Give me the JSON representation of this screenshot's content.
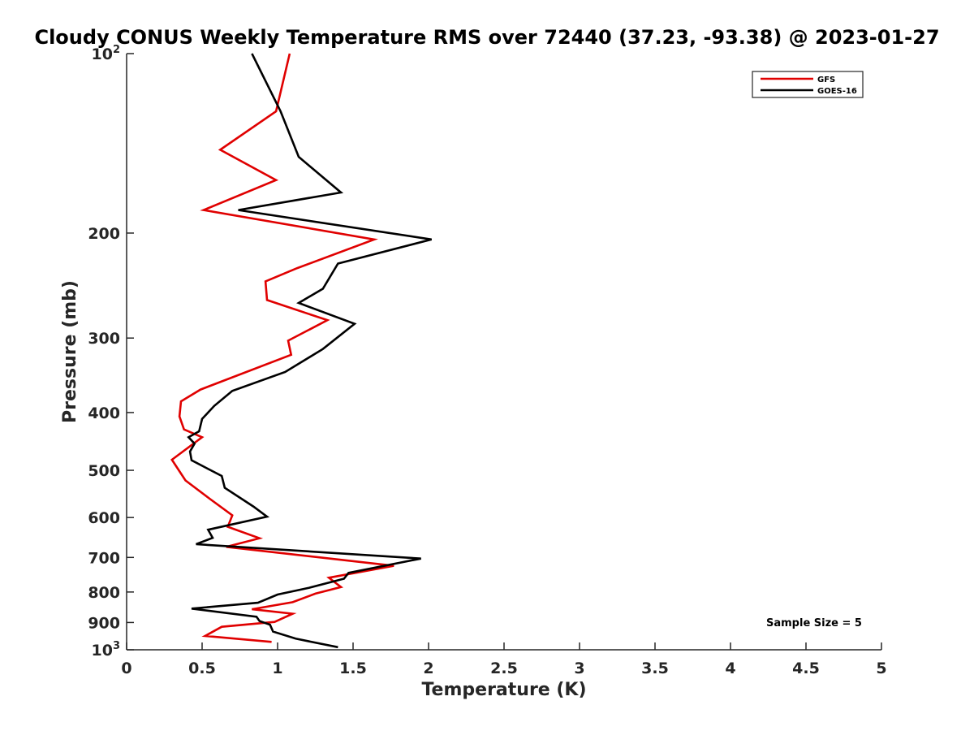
{
  "chart_data": {
    "type": "line",
    "title": "Cloudy CONUS Weekly Temperature RMS over 72440 (37.23, -93.38) @ 2023-01-27",
    "xlabel": "Temperature (K)",
    "ylabel": "Pressure (mb)",
    "xlim": [
      0,
      5
    ],
    "ylim": [
      100,
      1000
    ],
    "yscale": "log",
    "y_reversed": true,
    "grid": false,
    "legend_position": "top-right",
    "xticks": [
      "0",
      "0.5",
      "1",
      "1.5",
      "2",
      "2.5",
      "3",
      "3.5",
      "4",
      "4.5",
      "5"
    ],
    "yticks": [
      {
        "value": 100,
        "base": "10",
        "exp": "2"
      },
      {
        "value": 200,
        "label": "200"
      },
      {
        "value": 300,
        "label": "300"
      },
      {
        "value": 400,
        "label": "400"
      },
      {
        "value": 500,
        "label": "500"
      },
      {
        "value": 600,
        "label": "600"
      },
      {
        "value": 700,
        "label": "700"
      },
      {
        "value": 800,
        "label": "800"
      },
      {
        "value": 900,
        "label": "900"
      },
      {
        "value": 1000,
        "base": "10",
        "exp": "3"
      }
    ],
    "annotation": "Sample Size = 5",
    "series": [
      {
        "name": "GFS",
        "color": "#e00000",
        "points": [
          [
            1.08,
            100
          ],
          [
            0.99,
            125
          ],
          [
            0.62,
            145
          ],
          [
            0.99,
            163
          ],
          [
            0.51,
            183
          ],
          [
            1.64,
            205
          ],
          [
            1.13,
            229
          ],
          [
            0.92,
            241
          ],
          [
            0.93,
            259
          ],
          [
            1.33,
            280
          ],
          [
            1.07,
            303
          ],
          [
            1.09,
            320
          ],
          [
            0.49,
            366
          ],
          [
            0.36,
            383
          ],
          [
            0.35,
            406
          ],
          [
            0.38,
            427
          ],
          [
            0.5,
            440
          ],
          [
            0.3,
            480
          ],
          [
            0.39,
            520
          ],
          [
            0.55,
            558
          ],
          [
            0.7,
            595
          ],
          [
            0.67,
            622
          ],
          [
            0.88,
            650
          ],
          [
            0.66,
            672
          ],
          [
            1.77,
            723
          ],
          [
            1.34,
            757
          ],
          [
            1.42,
            785
          ],
          [
            1.25,
            805
          ],
          [
            1.1,
            832
          ],
          [
            0.83,
            855
          ],
          [
            1.1,
            870
          ],
          [
            0.98,
            898
          ],
          [
            0.63,
            915
          ],
          [
            0.52,
            948
          ],
          [
            0.96,
            970
          ]
        ]
      },
      {
        "name": "GOES-16",
        "color": "#000000",
        "points": [
          [
            0.83,
            100
          ],
          [
            1.02,
            125
          ],
          [
            1.14,
            149
          ],
          [
            1.42,
            171
          ],
          [
            0.74,
            183
          ],
          [
            2.02,
            205
          ],
          [
            1.4,
            225
          ],
          [
            1.3,
            248
          ],
          [
            1.14,
            262
          ],
          [
            1.51,
            284
          ],
          [
            1.3,
            313
          ],
          [
            1.05,
            342
          ],
          [
            0.7,
            368
          ],
          [
            0.58,
            390
          ],
          [
            0.5,
            410
          ],
          [
            0.48,
            430
          ],
          [
            0.41,
            440
          ],
          [
            0.45,
            451
          ],
          [
            0.42,
            465
          ],
          [
            0.43,
            481
          ],
          [
            0.63,
            511
          ],
          [
            0.65,
            535
          ],
          [
            0.84,
            575
          ],
          [
            0.93,
            598
          ],
          [
            0.54,
            629
          ],
          [
            0.57,
            649
          ],
          [
            0.46,
            665
          ],
          [
            1.95,
            703
          ],
          [
            1.47,
            743
          ],
          [
            1.44,
            760
          ],
          [
            1.21,
            787
          ],
          [
            1.0,
            808
          ],
          [
            0.87,
            834
          ],
          [
            0.43,
            853
          ],
          [
            0.86,
            880
          ],
          [
            0.88,
            895
          ],
          [
            0.95,
            908
          ],
          [
            0.97,
            932
          ],
          [
            1.12,
            958
          ],
          [
            1.4,
            990
          ]
        ]
      }
    ]
  }
}
